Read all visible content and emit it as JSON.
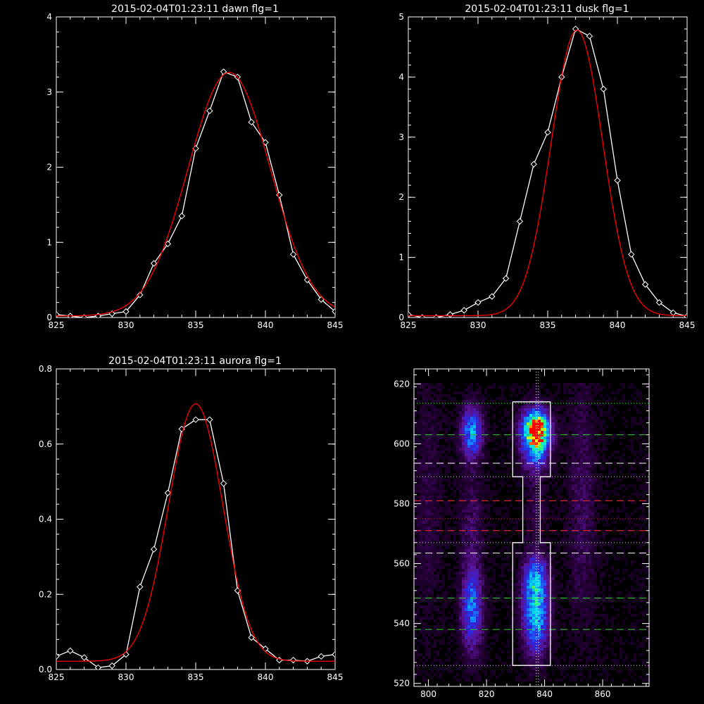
{
  "chart_data": [
    {
      "id": "dawn",
      "type": "line",
      "title": "2015-02-04T01:23:11 dawn flg=1",
      "xlim": [
        825,
        845
      ],
      "ylim": [
        0,
        4
      ],
      "xticks": [
        825,
        830,
        835,
        840,
        845
      ],
      "yticks": [
        0,
        1,
        2,
        3,
        4
      ],
      "series": [
        {
          "color": "#ffffff",
          "marker": "diamond",
          "x": [
            825,
            826,
            827,
            828,
            829,
            830,
            831,
            832,
            833,
            834,
            835,
            836,
            837,
            838,
            839,
            840,
            841,
            842,
            843,
            844,
            845
          ],
          "y": [
            0.04,
            0.02,
            0.0,
            0.02,
            0.05,
            0.08,
            0.3,
            0.72,
            0.98,
            1.35,
            2.25,
            2.75,
            3.27,
            3.2,
            2.6,
            2.33,
            1.63,
            0.84,
            0.5,
            0.24,
            0.08
          ]
        },
        {
          "color": "#ff0000",
          "curve": "gaussian",
          "amp": 3.24,
          "mu": 837.4,
          "sigma": 2.95,
          "base": 0.02
        }
      ]
    },
    {
      "id": "dusk",
      "type": "line",
      "title": "2015-02-04T01:23:11 dusk flg=1",
      "xlim": [
        825,
        845
      ],
      "ylim": [
        0,
        5
      ],
      "xticks": [
        825,
        830,
        835,
        840,
        845
      ],
      "yticks": [
        0,
        1,
        2,
        3,
        4,
        5
      ],
      "series": [
        {
          "color": "#ffffff",
          "marker": "diamond",
          "x": [
            825,
            826,
            827,
            828,
            829,
            830,
            831,
            832,
            833,
            834,
            835,
            836,
            837,
            838,
            839,
            840,
            841,
            842,
            843,
            844,
            845
          ],
          "y": [
            0.05,
            0.0,
            0.0,
            0.05,
            0.12,
            0.25,
            0.35,
            0.65,
            1.6,
            2.55,
            3.08,
            4.0,
            4.8,
            4.68,
            3.8,
            2.28,
            1.05,
            0.55,
            0.25,
            0.08,
            0.02
          ]
        },
        {
          "color": "#ff0000",
          "curve": "gaussian",
          "amp": 4.75,
          "mu": 837.1,
          "sigma": 1.85,
          "base": 0.03
        }
      ]
    },
    {
      "id": "aurora",
      "type": "line",
      "title": "2015-02-04T01:23:11 aurora flg=1",
      "xlim": [
        825,
        845
      ],
      "ylim": [
        0,
        0.8
      ],
      "xticks": [
        825,
        830,
        835,
        840,
        845
      ],
      "yticks": [
        0,
        0.2,
        0.4,
        0.6,
        0.8
      ],
      "ytick_labels": [
        "0.0",
        "0.2",
        "0.4",
        "0.6",
        "0.8"
      ],
      "series": [
        {
          "color": "#ffffff",
          "marker": "diamond",
          "x": [
            825,
            826,
            827,
            828,
            829,
            830,
            831,
            832,
            833,
            834,
            835,
            836,
            837,
            838,
            839,
            840,
            841,
            842,
            843,
            844,
            845
          ],
          "y": [
            0.035,
            0.05,
            0.032,
            0.005,
            0.01,
            0.04,
            0.22,
            0.32,
            0.47,
            0.64,
            0.665,
            0.665,
            0.495,
            0.21,
            0.085,
            0.055,
            0.025,
            0.025,
            0.022,
            0.035,
            0.04
          ]
        },
        {
          "color": "#ff0000",
          "curve": "gaussian",
          "amp": 0.685,
          "mu": 835.0,
          "sigma": 1.95,
          "base": 0.022
        }
      ]
    },
    {
      "id": "image",
      "type": "heatmap",
      "xlim": [
        795,
        876
      ],
      "ylim": [
        519,
        625
      ],
      "xticks": [
        800,
        820,
        840,
        860
      ],
      "yticks": [
        520,
        540,
        560,
        580,
        600,
        620
      ],
      "blobs": [
        {
          "cx": 837,
          "cy": 605,
          "sx": 3.2,
          "sy": 4.5,
          "amp": 1.0
        },
        {
          "cx": 837,
          "cy": 597,
          "sx": 3.2,
          "sy": 5.0,
          "amp": 0.4
        },
        {
          "cx": 837,
          "cy": 543,
          "sx": 3.0,
          "sy": 9.0,
          "amp": 0.6
        },
        {
          "cx": 837,
          "cy": 556,
          "sx": 3.0,
          "sy": 5.0,
          "amp": 0.35
        },
        {
          "cx": 837,
          "cy": 578,
          "sx": 2.5,
          "sy": 7.0,
          "amp": 0.1
        },
        {
          "cx": 815,
          "cy": 604,
          "sx": 2.5,
          "sy": 6.0,
          "amp": 0.5
        },
        {
          "cx": 815,
          "cy": 545,
          "sx": 2.5,
          "sy": 10.0,
          "amp": 0.45
        },
        {
          "cx": 815,
          "cy": 575,
          "sx": 3.0,
          "sy": 12.0,
          "amp": 0.12
        },
        {
          "cx": 853,
          "cy": 580,
          "sx": 3.5,
          "sy": 30.0,
          "amp": 0.12
        },
        {
          "cx": 800,
          "cy": 580,
          "sx": 3.5,
          "sy": 30.0,
          "amp": 0.08
        }
      ],
      "hlines": [
        {
          "y": 613.5,
          "color": "#33ff33",
          "style": "dotted"
        },
        {
          "y": 603,
          "color": "#33cc33",
          "style": "dashed"
        },
        {
          "y": 593.5,
          "color": "#ffffff",
          "style": "dashed"
        },
        {
          "y": 589,
          "color": "#cccccc",
          "style": "dotted"
        },
        {
          "y": 581,
          "color": "#ff3333",
          "style": "dashed"
        },
        {
          "y": 575,
          "color": "#993333",
          "style": "dotted"
        },
        {
          "y": 571,
          "color": "#ff3333",
          "style": "dashed"
        },
        {
          "y": 567,
          "color": "#cccccc",
          "style": "dotted"
        },
        {
          "y": 563.5,
          "color": "#ffffff",
          "style": "dashed"
        },
        {
          "y": 548.5,
          "color": "#33cc33",
          "style": "dashed"
        },
        {
          "y": 538,
          "color": "#33cc33",
          "style": "dashed"
        },
        {
          "y": 526,
          "color": "#cccccc",
          "style": "dotted"
        }
      ],
      "vlines": [
        {
          "x": 837.5,
          "color": "#ffffff",
          "style": "dotted"
        }
      ],
      "box_outline": [
        [
          829,
          614
        ],
        [
          842,
          614
        ],
        [
          842,
          589
        ],
        [
          838.5,
          589
        ],
        [
          838.5,
          567
        ],
        [
          842,
          567
        ],
        [
          842,
          526
        ],
        [
          829,
          526
        ],
        [
          829,
          567
        ],
        [
          832.5,
          567
        ],
        [
          832.5,
          589
        ],
        [
          829,
          589
        ],
        [
          829,
          614
        ]
      ]
    }
  ]
}
